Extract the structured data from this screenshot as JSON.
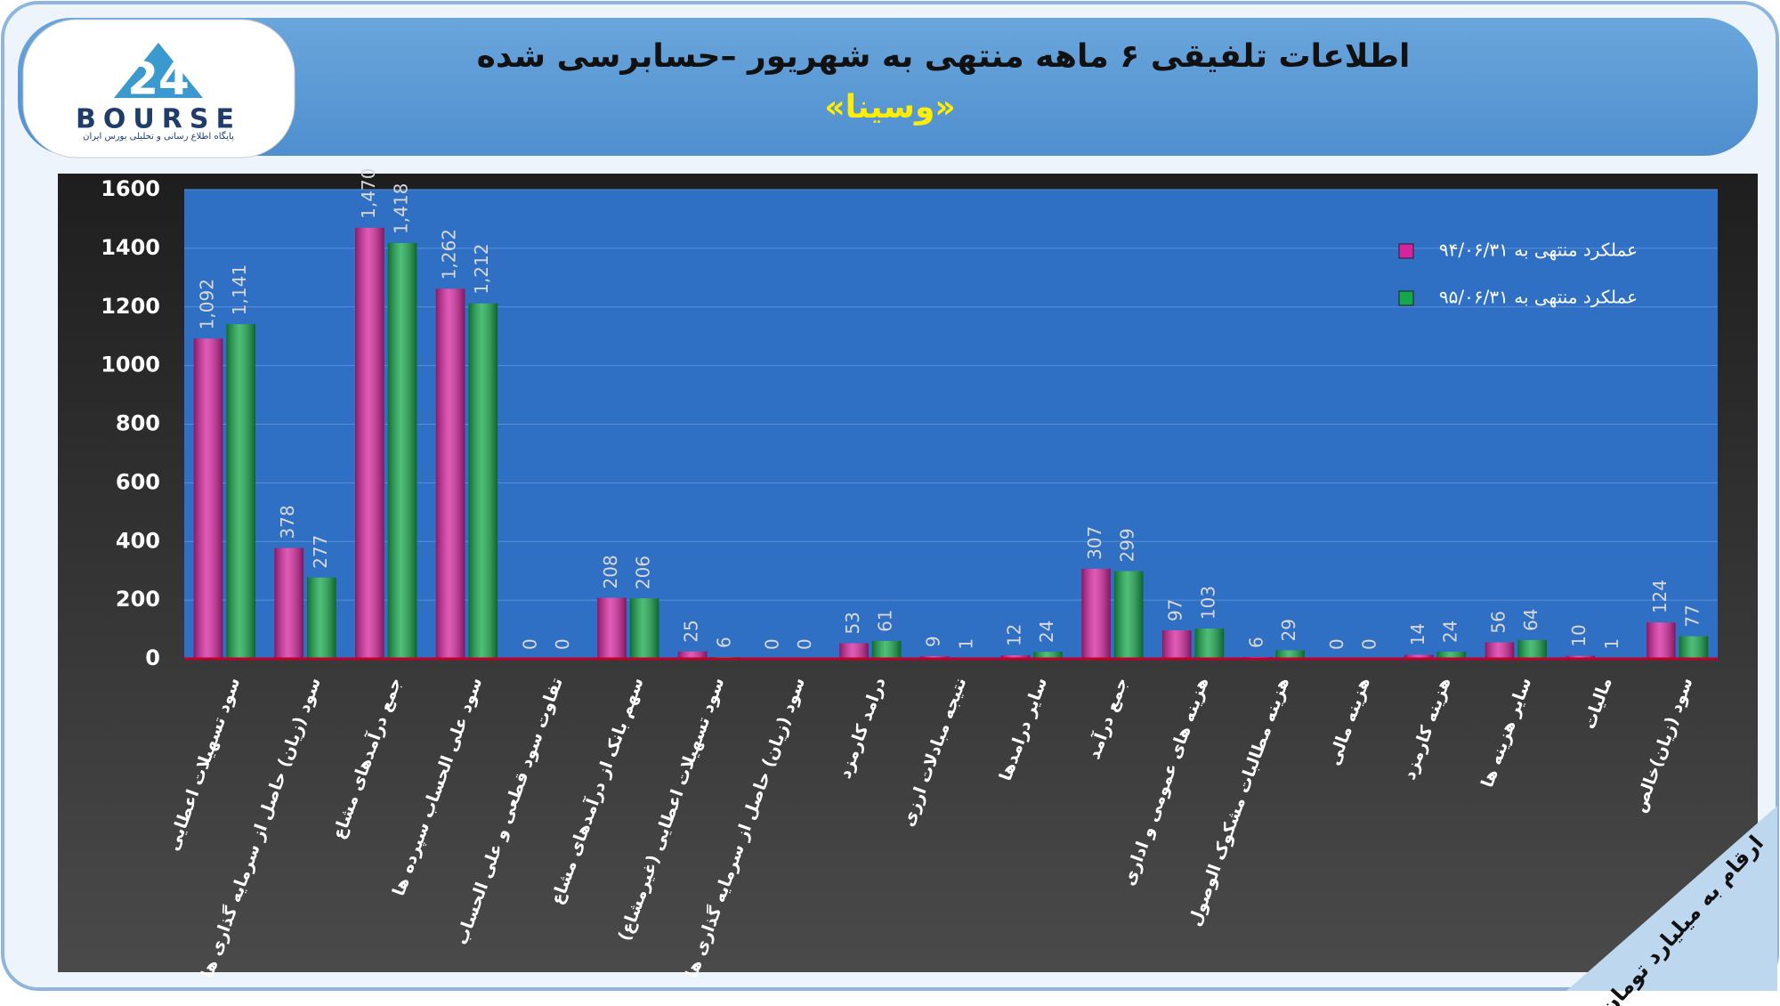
{
  "logo": {
    "number": "24",
    "name": "BOURSE",
    "tagline": "پایگاه اطلاع رسانی و تحلیلی بورس ایران"
  },
  "chart_data": {
    "type": "bar",
    "title": "اطلاعات تلفیقی ۶ ماهه منتهی به شهریور –حسابرسی شده",
    "subtitle": "«وسینا»",
    "annotation": "ارقام به میلیارد تومان",
    "categories": [
      "سود تسهیلات اعطایی",
      "سود (زیان) حاصل از سرمایه گذاری ها",
      "جمع درآمدهای مشاع",
      "سود علی الحساب سپرده ها",
      "تفاوت سود قطعی و علی الحساب",
      "سهم بانک از درآمدهای مشاع",
      "سود تسهیلات اعطایی (غیرمشاع)",
      "سود (زیان) حاصل از سرمایه گذاری ها",
      "درامد کارمزد",
      "نتیجه مبادلات ارزی",
      "سایر درامدها",
      "جمع درآمد",
      "هزینه های عمومی و اداری",
      "هزینه مطالبات مشکوک الوصول",
      "هزینه مالی",
      "هزینه کارمزد",
      "سایر هزینه ها",
      "مالیات",
      "سود (زیان)خالص"
    ],
    "series": [
      {
        "name": "عملکرد منتهی به ۹۴/۰۶/۳۱",
        "color": "#d6249f",
        "values": [
          1092,
          378,
          1470,
          1262,
          0,
          208,
          25,
          0,
          53,
          9,
          12,
          307,
          97,
          6,
          0,
          14,
          56,
          10,
          124
        ],
        "value_labels": [
          "1,092",
          "378",
          "1,470",
          "1,262",
          "0",
          "208",
          "25",
          "0",
          "53",
          "9",
          "12",
          "307",
          "97",
          "6",
          "0",
          "14",
          "56",
          "10",
          "124"
        ]
      },
      {
        "name": "عملکرد منتهی به ۹۵/۰۶/۳۱",
        "color": "#14a84a",
        "values": [
          1141,
          277,
          1418,
          1212,
          0,
          206,
          6,
          0,
          61,
          1,
          24,
          299,
          103,
          29,
          0,
          24,
          64,
          1,
          77
        ],
        "value_labels": [
          "1,141",
          "277",
          "1,418",
          "1,212",
          "0",
          "206",
          "6",
          "0",
          "61",
          "1",
          "24",
          "299",
          "103",
          "29",
          "0",
          "24",
          "64",
          "1",
          "77"
        ]
      }
    ],
    "ylim": [
      0,
      1600
    ],
    "yticks": [
      0,
      200,
      400,
      600,
      800,
      1000,
      1200,
      1400,
      1600
    ],
    "grid": true,
    "legend": "top-right"
  }
}
